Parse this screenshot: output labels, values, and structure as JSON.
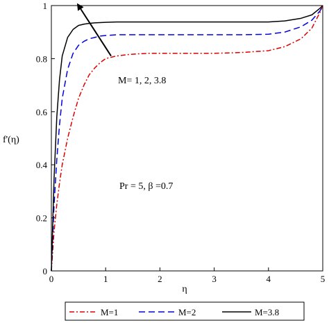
{
  "chart_data": {
    "type": "line",
    "title": "",
    "xlabel": "η",
    "ylabel": "f'(η)",
    "xlim": [
      0,
      5
    ],
    "ylim": [
      0,
      1
    ],
    "x_ticks": [
      0,
      1,
      2,
      3,
      4,
      5
    ],
    "y_ticks": [
      0,
      0.2,
      0.4,
      0.6,
      0.8,
      1
    ],
    "x_tick_labels": [
      "0",
      "1",
      "2",
      "3",
      "4",
      "5"
    ],
    "y_tick_labels": [
      "0",
      "0.2",
      "0.4",
      "0.6",
      "0.8",
      "1"
    ],
    "grid": false,
    "legend_position": "bottom",
    "annotations": {
      "arrow_label": "M= 1, 2, 3.8",
      "params": "Pr = 5, β =0.7"
    },
    "series": [
      {
        "name": "M=1",
        "color": "#dd0000",
        "style": "dashdot",
        "x": [
          0,
          0.05,
          0.1,
          0.15,
          0.2,
          0.3,
          0.4,
          0.5,
          0.6,
          0.7,
          0.8,
          0.9,
          1.0,
          1.2,
          1.4,
          1.6,
          1.8,
          2.0,
          2.5,
          3.0,
          3.5,
          4.0,
          4.3,
          4.6,
          4.8,
          4.95,
          5.0
        ],
        "y": [
          0,
          0.15,
          0.25,
          0.33,
          0.4,
          0.5,
          0.58,
          0.65,
          0.7,
          0.74,
          0.765,
          0.785,
          0.8,
          0.81,
          0.815,
          0.818,
          0.82,
          0.82,
          0.82,
          0.82,
          0.823,
          0.83,
          0.845,
          0.875,
          0.915,
          0.975,
          1.0
        ]
      },
      {
        "name": "M=2",
        "color": "#0000dd",
        "style": "dashed",
        "x": [
          0,
          0.05,
          0.1,
          0.15,
          0.2,
          0.3,
          0.4,
          0.5,
          0.6,
          0.7,
          0.8,
          0.9,
          1.0,
          1.2,
          1.4,
          1.6,
          2.0,
          2.5,
          3.0,
          3.5,
          4.0,
          4.3,
          4.6,
          4.8,
          4.95,
          5.0
        ],
        "y": [
          0,
          0.25,
          0.42,
          0.55,
          0.65,
          0.76,
          0.82,
          0.85,
          0.865,
          0.875,
          0.88,
          0.885,
          0.887,
          0.89,
          0.89,
          0.89,
          0.89,
          0.89,
          0.89,
          0.89,
          0.892,
          0.9,
          0.92,
          0.945,
          0.98,
          1.0
        ]
      },
      {
        "name": "M=3.8",
        "color": "#000000",
        "style": "solid",
        "x": [
          0,
          0.05,
          0.1,
          0.15,
          0.2,
          0.3,
          0.4,
          0.5,
          0.6,
          0.7,
          0.8,
          0.9,
          1.0,
          1.2,
          1.5,
          2.0,
          2.5,
          3.0,
          3.5,
          4.0,
          4.3,
          4.6,
          4.8,
          4.95,
          5.0
        ],
        "y": [
          0,
          0.35,
          0.58,
          0.72,
          0.81,
          0.88,
          0.91,
          0.925,
          0.93,
          0.933,
          0.935,
          0.936,
          0.937,
          0.938,
          0.938,
          0.938,
          0.938,
          0.938,
          0.938,
          0.938,
          0.942,
          0.952,
          0.965,
          0.99,
          1.0
        ]
      }
    ],
    "arrow": {
      "from": [
        1.1,
        0.81
      ],
      "to": [
        0.5,
        1.0
      ]
    }
  }
}
